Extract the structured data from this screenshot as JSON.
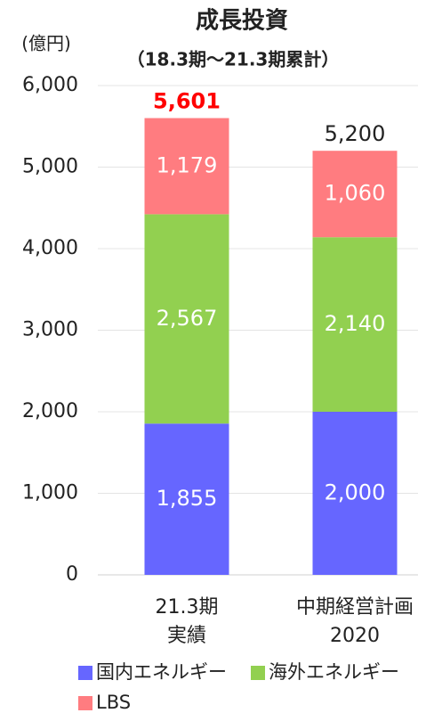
{
  "chart_data": {
    "type": "stacked_bar",
    "title": "成長投資",
    "subtitle": "（18.3期～21.3期累計）",
    "y_unit": "(億円)",
    "categories": [
      [
        "21.3期",
        "実績"
      ],
      [
        "中期経営計画",
        "2020"
      ]
    ],
    "series": [
      {
        "name": "国内エネルギー",
        "color": "#6666ff",
        "values": [
          1855,
          2000
        ],
        "value_labels": [
          "1,855",
          "2,000"
        ]
      },
      {
        "name": "海外エネルギー",
        "color": "#92d050",
        "values": [
          2567,
          2140
        ],
        "value_labels": [
          "2,567",
          "2,140"
        ]
      },
      {
        "name": "LBS",
        "color": "#ff7c80",
        "values": [
          1179,
          1060
        ],
        "value_labels": [
          "1,179",
          "1,060"
        ]
      }
    ],
    "totals": [
      5601,
      5200
    ],
    "total_labels": [
      "5,601",
      "5,200"
    ],
    "total_colors": [
      "#ff0000",
      "#222222"
    ],
    "total_font_weights": [
      "bold",
      "normal"
    ],
    "ylim": [
      0,
      6000
    ],
    "yticks": [
      0,
      {
        "value": 1000,
        "label": "1,000"
      },
      {
        "value": 2000,
        "label": "2,000"
      },
      {
        "value": 3000,
        "label": "3,000"
      },
      {
        "value": 4000,
        "label": "4,000"
      },
      {
        "value": 5000,
        "label": "5,000"
      },
      {
        "value": 6000,
        "label": "6,000"
      }
    ],
    "grid": true
  }
}
